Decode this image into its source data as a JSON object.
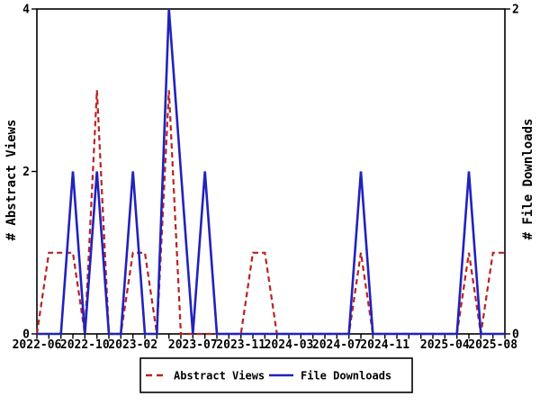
{
  "chart_data": {
    "type": "line",
    "title": "",
    "xlabel": "",
    "ylabel_left": "# Abstract Views",
    "ylabel_right": "# File Downloads",
    "grid": false,
    "legend_position": "bottom-center",
    "x": [
      "2022-06",
      "2022-07",
      "2022-08",
      "2022-09",
      "2022-10",
      "2022-11",
      "2022-12",
      "2023-01",
      "2023-02",
      "2023-03",
      "2023-04",
      "2023-05",
      "2023-06",
      "2023-07",
      "2023-08",
      "2023-09",
      "2023-10",
      "2023-11",
      "2023-12",
      "2024-01",
      "2024-02",
      "2024-03",
      "2024-04",
      "2024-05",
      "2024-06",
      "2024-07",
      "2024-08",
      "2024-09",
      "2024-10",
      "2024-11",
      "2024-12",
      "2025-01",
      "2025-02",
      "2025-03",
      "2025-04",
      "2025-05",
      "2025-06",
      "2025-07",
      "2025-08",
      "2025-09"
    ],
    "x_tick_labels": [
      "2022-06",
      "2022-10",
      "2023-02",
      "2023-07",
      "2023-11",
      "2024-03",
      "2024-07",
      "2024-11",
      "2025-04",
      "2025-08"
    ],
    "y_left": {
      "min": 0,
      "max": 4,
      "tick_values": [
        0,
        2,
        4
      ],
      "tick_labels": [
        "0",
        "2",
        "4"
      ]
    },
    "y_right": {
      "min": 0,
      "max": 2,
      "tick_values": [
        0,
        2
      ],
      "tick_labels": [
        "0",
        "2"
      ]
    },
    "series": [
      {
        "name": "Abstract Views",
        "axis": "left",
        "style": "dashed",
        "color": "#bb2222",
        "values": [
          0,
          1,
          1,
          1,
          0,
          3,
          0,
          0,
          1,
          1,
          0,
          3,
          0,
          0,
          0,
          0,
          0,
          0,
          1,
          1,
          0,
          0,
          0,
          0,
          0,
          0,
          0,
          1,
          0,
          0,
          0,
          0,
          0,
          0,
          0,
          0,
          1,
          0,
          1,
          1
        ]
      },
      {
        "name": "File Downloads",
        "axis": "right",
        "style": "solid",
        "color": "#2222bb",
        "values": [
          0,
          0,
          0,
          1,
          0,
          1,
          0,
          0,
          1,
          0,
          0,
          2,
          1,
          0,
          1,
          0,
          0,
          0,
          0,
          0,
          0,
          0,
          0,
          0,
          0,
          0,
          0,
          1,
          0,
          0,
          0,
          0,
          0,
          0,
          0,
          0,
          1,
          0,
          0,
          0
        ]
      }
    ]
  },
  "colors": {
    "axis": "#000000",
    "background": "#ffffff",
    "abstract_views": "#bb2222",
    "file_downloads": "#2222bb"
  }
}
